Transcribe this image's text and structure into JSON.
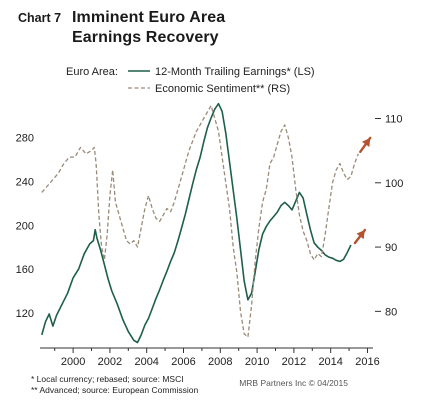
{
  "header": {
    "chart_number": "Chart 7",
    "title_line1": "Imminent Euro Area",
    "title_line2": "Earnings Recovery"
  },
  "footer": {
    "note1": "*  Local currency; rebased; source: MSCI",
    "note2": "** Advanced; source: European Commission",
    "credit": "MRB Partners Inc © 04/2015"
  },
  "colors": {
    "earnings": "#1e5f4a",
    "sentiment": "#9a8a78",
    "arrow": "#b5532f",
    "axis": "#333333"
  },
  "chart_data": {
    "type": "line",
    "legend_prefix": "Euro Area:",
    "legend_position": "top",
    "x_ticks": [
      "2000",
      "2002",
      "2004",
      "2006",
      "2008",
      "2010",
      "2012",
      "2014",
      "2016"
    ],
    "xlim": [
      1998.2,
      2016.3
    ],
    "y_left": {
      "ticks": [
        "120",
        "160",
        "200",
        "240",
        "280"
      ],
      "ylim": [
        88,
        318
      ]
    },
    "y_right": {
      "ticks": [
        "80",
        "90",
        "100",
        "110"
      ],
      "ylim": [
        74.3,
        113.5
      ]
    },
    "grid": false,
    "annotations": [
      "up-arrow on 12-Month Trailing Earnings* (LS) near 2015",
      "up-arrow on Economic Sentiment** (RS) near 2015.7"
    ],
    "series": [
      {
        "name": "12-Month Trailing Earnings* (LS)",
        "axis": "left",
        "style": "solid",
        "points": [
          [
            1998.3,
            100
          ],
          [
            1998.5,
            112
          ],
          [
            1998.7,
            119
          ],
          [
            1998.9,
            108
          ],
          [
            1999.1,
            118
          ],
          [
            1999.4,
            128
          ],
          [
            1999.7,
            138
          ],
          [
            2000.0,
            152
          ],
          [
            2000.3,
            160
          ],
          [
            2000.6,
            174
          ],
          [
            2000.9,
            183
          ],
          [
            2001.1,
            186
          ],
          [
            2001.2,
            196
          ],
          [
            2001.3,
            188
          ],
          [
            2001.5,
            177
          ],
          [
            2001.7,
            164
          ],
          [
            2001.9,
            151
          ],
          [
            2002.1,
            140
          ],
          [
            2002.4,
            128
          ],
          [
            2002.7,
            114
          ],
          [
            2003.0,
            103
          ],
          [
            2003.3,
            95
          ],
          [
            2003.5,
            93
          ],
          [
            2003.7,
            100
          ],
          [
            2003.9,
            109
          ],
          [
            2004.1,
            115
          ],
          [
            2004.3,
            124
          ],
          [
            2004.5,
            133
          ],
          [
            2004.7,
            141
          ],
          [
            2004.9,
            150
          ],
          [
            2005.1,
            158
          ],
          [
            2005.3,
            167
          ],
          [
            2005.5,
            175
          ],
          [
            2005.7,
            186
          ],
          [
            2005.9,
            198
          ],
          [
            2006.1,
            210
          ],
          [
            2006.3,
            224
          ],
          [
            2006.5,
            238
          ],
          [
            2006.7,
            251
          ],
          [
            2006.9,
            262
          ],
          [
            2007.1,
            276
          ],
          [
            2007.3,
            289
          ],
          [
            2007.5,
            298
          ],
          [
            2007.7,
            306
          ],
          [
            2007.9,
            311
          ],
          [
            2008.1,
            304
          ],
          [
            2008.3,
            284
          ],
          [
            2008.5,
            258
          ],
          [
            2008.7,
            232
          ],
          [
            2008.9,
            206
          ],
          [
            2009.1,
            178
          ],
          [
            2009.3,
            149
          ],
          [
            2009.5,
            132
          ],
          [
            2009.7,
            138
          ],
          [
            2009.9,
            158
          ],
          [
            2010.1,
            178
          ],
          [
            2010.3,
            192
          ],
          [
            2010.5,
            199
          ],
          [
            2010.7,
            204
          ],
          [
            2010.9,
            208
          ],
          [
            2011.1,
            212
          ],
          [
            2011.3,
            218
          ],
          [
            2011.5,
            221
          ],
          [
            2011.7,
            218
          ],
          [
            2011.9,
            214
          ],
          [
            2012.1,
            222
          ],
          [
            2012.3,
            230
          ],
          [
            2012.5,
            225
          ],
          [
            2012.7,
            210
          ],
          [
            2012.9,
            196
          ],
          [
            2013.1,
            184
          ],
          [
            2013.3,
            180
          ],
          [
            2013.5,
            177
          ],
          [
            2013.7,
            173
          ],
          [
            2013.9,
            171
          ],
          [
            2014.1,
            170
          ],
          [
            2014.3,
            168
          ],
          [
            2014.5,
            167
          ],
          [
            2014.7,
            169
          ],
          [
            2014.9,
            175
          ],
          [
            2015.1,
            182
          ]
        ]
      },
      {
        "name": "Economic Sentiment** (RS)",
        "axis": "right",
        "style": "dashed",
        "points": [
          [
            1998.3,
            98.5
          ],
          [
            1998.6,
            99.5
          ],
          [
            1998.9,
            100.5
          ],
          [
            1999.2,
            101.5
          ],
          [
            1999.5,
            103
          ],
          [
            1999.8,
            104
          ],
          [
            2000.1,
            104
          ],
          [
            2000.4,
            105.5
          ],
          [
            2000.7,
            104.5
          ],
          [
            2001.0,
            105
          ],
          [
            2001.15,
            105.5
          ],
          [
            2001.25,
            103
          ],
          [
            2001.4,
            95
          ],
          [
            2001.55,
            90
          ],
          [
            2001.7,
            88
          ],
          [
            2001.85,
            92
          ],
          [
            2002.0,
            98
          ],
          [
            2002.15,
            102
          ],
          [
            2002.3,
            97
          ],
          [
            2002.5,
            95
          ],
          [
            2002.7,
            93
          ],
          [
            2002.9,
            91
          ],
          [
            2003.1,
            90.5
          ],
          [
            2003.3,
            91
          ],
          [
            2003.5,
            90
          ],
          [
            2003.7,
            93
          ],
          [
            2003.9,
            96
          ],
          [
            2004.1,
            98
          ],
          [
            2004.3,
            96
          ],
          [
            2004.5,
            94.5
          ],
          [
            2004.7,
            94
          ],
          [
            2004.9,
            95
          ],
          [
            2005.1,
            96
          ],
          [
            2005.3,
            95.5
          ],
          [
            2005.5,
            97
          ],
          [
            2005.7,
            99
          ],
          [
            2005.9,
            101
          ],
          [
            2006.1,
            103
          ],
          [
            2006.3,
            105
          ],
          [
            2006.5,
            106.5
          ],
          [
            2006.7,
            108
          ],
          [
            2006.9,
            109
          ],
          [
            2007.1,
            110
          ],
          [
            2007.3,
            111
          ],
          [
            2007.5,
            112
          ],
          [
            2007.7,
            110
          ],
          [
            2007.9,
            108
          ],
          [
            2008.1,
            104
          ],
          [
            2008.3,
            100
          ],
          [
            2008.5,
            96
          ],
          [
            2008.7,
            90
          ],
          [
            2008.9,
            86
          ],
          [
            2009.1,
            80
          ],
          [
            2009.3,
            76.5
          ],
          [
            2009.5,
            76
          ],
          [
            2009.7,
            81
          ],
          [
            2009.9,
            88
          ],
          [
            2010.1,
            93
          ],
          [
            2010.3,
            97
          ],
          [
            2010.5,
            99
          ],
          [
            2010.7,
            103
          ],
          [
            2010.9,
            104
          ],
          [
            2011.1,
            106
          ],
          [
            2011.3,
            108
          ],
          [
            2011.5,
            109
          ],
          [
            2011.7,
            107
          ],
          [
            2011.9,
            104
          ],
          [
            2012.1,
            99
          ],
          [
            2012.3,
            95
          ],
          [
            2012.5,
            92.5
          ],
          [
            2012.7,
            91
          ],
          [
            2012.9,
            89
          ],
          [
            2013.1,
            88
          ],
          [
            2013.3,
            89
          ],
          [
            2013.5,
            88.5
          ],
          [
            2013.7,
            92
          ],
          [
            2013.9,
            96
          ],
          [
            2014.1,
            100
          ],
          [
            2014.3,
            102
          ],
          [
            2014.5,
            103
          ],
          [
            2014.7,
            101.5
          ],
          [
            2014.9,
            100.5
          ],
          [
            2015.1,
            101
          ],
          [
            2015.3,
            103
          ],
          [
            2015.5,
            104.5
          ]
        ]
      }
    ]
  }
}
